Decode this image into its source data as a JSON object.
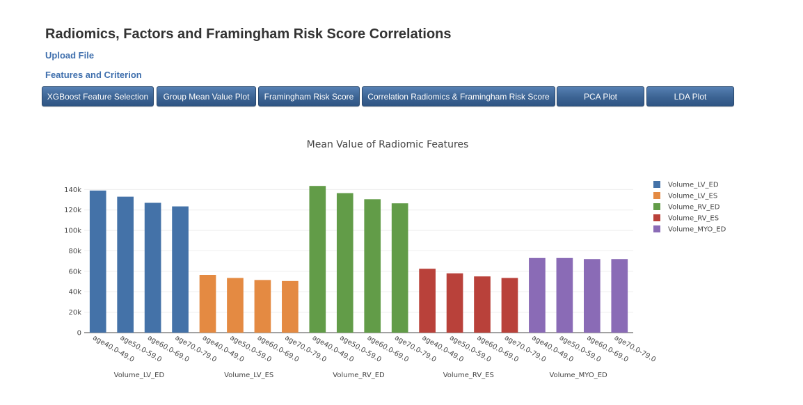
{
  "page": {
    "title": "Radiomics, Factors and Framingham Risk Score Correlations",
    "upload_link": "Upload File",
    "features_link": "Features and Criterion"
  },
  "buttons": [
    {
      "label": "XGBoost Feature Selection"
    },
    {
      "label": "Group Mean Value Plot"
    },
    {
      "label": "Framingham Risk Score"
    },
    {
      "label": "Correlation Radiomics & Framingham Risk Score"
    },
    {
      "label": "PCA Plot"
    },
    {
      "label": "LDA Plot"
    }
  ],
  "colors": {
    "link": "#3f6fad",
    "button": "#3c6393"
  },
  "chart_data": {
    "type": "bar",
    "title": "Mean Value of Radiomic Features",
    "xlabel": "",
    "ylabel": "",
    "ylim": [
      0,
      145000
    ],
    "yticks": [
      0,
      20000,
      40000,
      60000,
      80000,
      100000,
      120000,
      140000
    ],
    "ytick_labels": [
      "0",
      "20k",
      "40k",
      "60k",
      "80k",
      "100k",
      "120k",
      "140k"
    ],
    "grid": true,
    "legend_position": "right",
    "categories": [
      "age40.0-49.0",
      "age50.0-59.0",
      "age60.0-69.0",
      "age70.0-79.0"
    ],
    "series": [
      {
        "name": "Volume_LV_ED",
        "color": "#4472a8",
        "values": [
          139000,
          133000,
          127000,
          123500
        ]
      },
      {
        "name": "Volume_LV_ES",
        "color": "#e48a42",
        "values": [
          56500,
          53500,
          51500,
          50500
        ]
      },
      {
        "name": "Volume_RV_ED",
        "color": "#629c48",
        "values": [
          143500,
          136500,
          130500,
          126500
        ]
      },
      {
        "name": "Volume_RV_ES",
        "color": "#b9413a",
        "values": [
          62500,
          58000,
          55000,
          53500
        ]
      },
      {
        "name": "Volume_MYO_ED",
        "color": "#8a6bb6",
        "values": [
          73000,
          73000,
          72000,
          72000
        ]
      }
    ]
  }
}
